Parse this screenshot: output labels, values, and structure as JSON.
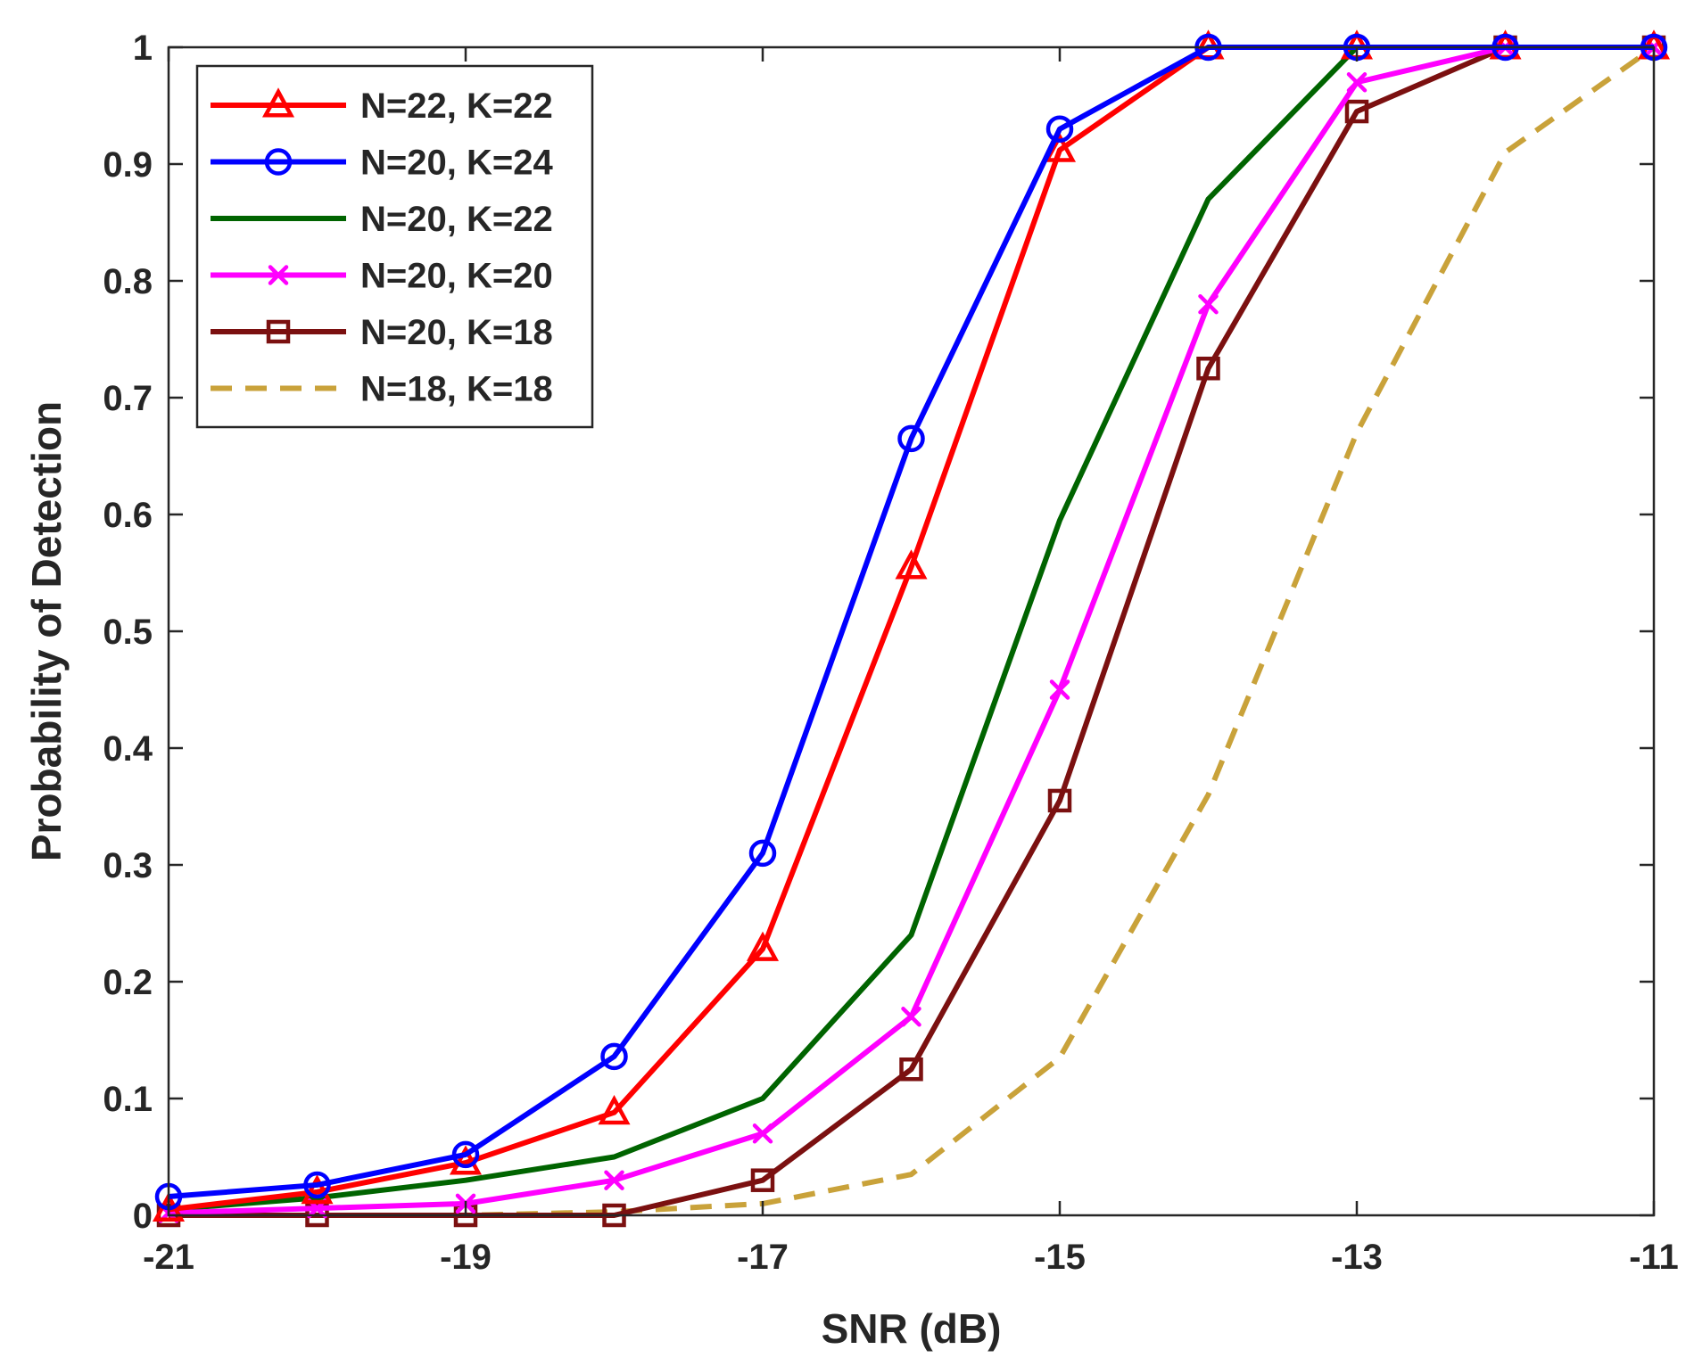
{
  "chart_data": {
    "type": "line",
    "title": "",
    "xlabel": "SNR (dB)",
    "ylabel": "Probability of Detection",
    "xlim": [
      -21,
      -11
    ],
    "ylim": [
      0,
      1
    ],
    "xticks": [
      -21,
      -19,
      -17,
      -15,
      -13,
      -11
    ],
    "xtick_labels": [
      "-21",
      "-19",
      "-17",
      "-15",
      "-13",
      "-11"
    ],
    "yticks": [
      0,
      0.1,
      0.2,
      0.3,
      0.4,
      0.5,
      0.6,
      0.7,
      0.8,
      0.9,
      1
    ],
    "ytick_labels": [
      "0",
      "0.1",
      "0.2",
      "0.3",
      "0.4",
      "0.5",
      "0.6",
      "0.7",
      "0.8",
      "0.9",
      "1"
    ],
    "grid": false,
    "legend_position": "top-left",
    "x": [
      -21,
      -20,
      -19,
      -18,
      -17,
      -16,
      -15,
      -14,
      -13,
      -12,
      -11
    ],
    "series": [
      {
        "name": "N=22, K=22",
        "color": "#ff0000",
        "marker": "triangle",
        "dash": "solid",
        "values": [
          0.005,
          0.02,
          0.045,
          0.088,
          0.228,
          0.555,
          0.912,
          1.0,
          1.0,
          1.0,
          1.0
        ]
      },
      {
        "name": "N=20, K=24",
        "color": "#0000ff",
        "marker": "circle",
        "dash": "solid",
        "values": [
          0.016,
          0.026,
          0.052,
          0.136,
          0.31,
          0.665,
          0.93,
          1.0,
          1.0,
          1.0,
          1.0
        ]
      },
      {
        "name": "N=20, K=22",
        "color": "#006400",
        "marker": "none",
        "dash": "solid",
        "values": [
          0.005,
          0.015,
          0.03,
          0.05,
          0.1,
          0.24,
          0.595,
          0.87,
          1.0,
          1.0,
          1.0
        ]
      },
      {
        "name": "N=20, K=20",
        "color": "#ff00ff",
        "marker": "x",
        "dash": "solid",
        "values": [
          0.002,
          0.006,
          0.01,
          0.03,
          0.07,
          0.17,
          0.45,
          0.78,
          0.97,
          1.0,
          1.0
        ]
      },
      {
        "name": "N=20, K=18",
        "color": "#7b1010",
        "marker": "square",
        "dash": "solid",
        "values": [
          0.0,
          0.0,
          0.0,
          0.0,
          0.03,
          0.125,
          0.355,
          0.725,
          0.945,
          1.0,
          1.0
        ]
      },
      {
        "name": "N=18, K=18",
        "color": "#c9a23a",
        "marker": "none",
        "dash": "dashed",
        "values": [
          0.0,
          0.0,
          0.0,
          0.003,
          0.01,
          0.035,
          0.135,
          0.36,
          0.67,
          0.91,
          1.0
        ]
      }
    ]
  }
}
